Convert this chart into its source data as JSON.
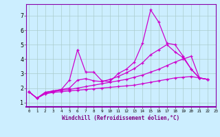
{
  "xlabel": "Windchill (Refroidissement éolien,°C)",
  "bg_color": "#cceeff",
  "grid_color": "#aacccc",
  "line_color": "#cc00cc",
  "x_ticks": [
    0,
    1,
    2,
    3,
    4,
    5,
    6,
    7,
    8,
    9,
    10,
    11,
    12,
    13,
    14,
    15,
    16,
    17,
    18,
    19,
    20,
    21,
    22,
    23
  ],
  "y_ticks": [
    1,
    2,
    3,
    4,
    5,
    6,
    7
  ],
  "ylim": [
    0.7,
    7.8
  ],
  "xlim": [
    -0.3,
    23
  ],
  "series": [
    {
      "x": [
        0,
        1,
        2,
        3,
        4,
        5,
        6,
        7,
        8,
        9,
        10,
        11,
        12,
        13,
        14,
        15,
        16,
        17,
        18,
        19,
        20,
        21,
        22
      ],
      "y": [
        1.75,
        1.3,
        1.7,
        1.8,
        1.9,
        2.55,
        4.65,
        3.1,
        3.1,
        2.5,
        2.45,
        3.0,
        3.3,
        3.8,
        5.1,
        7.4,
        6.55,
        5.1,
        5.0,
        4.2,
        3.3,
        2.7,
        2.6
      ]
    },
    {
      "x": [
        0,
        1,
        2,
        3,
        4,
        5,
        6,
        7,
        8,
        9,
        10,
        11,
        12,
        13,
        14,
        15,
        16,
        17,
        18,
        19,
        20,
        21,
        22
      ],
      "y": [
        1.75,
        1.3,
        1.7,
        1.8,
        1.9,
        2.0,
        2.55,
        2.65,
        2.5,
        2.45,
        2.6,
        2.8,
        3.05,
        3.35,
        3.75,
        4.3,
        4.65,
        5.0,
        4.5,
        4.1,
        3.3,
        2.7,
        2.6
      ]
    },
    {
      "x": [
        0,
        1,
        2,
        3,
        4,
        5,
        6,
        7,
        8,
        9,
        10,
        11,
        12,
        13,
        14,
        15,
        16,
        17,
        18,
        19,
        20,
        21,
        22
      ],
      "y": [
        1.75,
        1.3,
        1.6,
        1.75,
        1.85,
        1.9,
        2.0,
        2.1,
        2.2,
        2.3,
        2.4,
        2.5,
        2.6,
        2.75,
        2.9,
        3.1,
        3.3,
        3.55,
        3.8,
        4.0,
        4.2,
        2.7,
        2.6
      ]
    },
    {
      "x": [
        0,
        1,
        2,
        3,
        4,
        5,
        6,
        7,
        8,
        9,
        10,
        11,
        12,
        13,
        14,
        15,
        16,
        17,
        18,
        19,
        20,
        21,
        22
      ],
      "y": [
        1.75,
        1.3,
        1.6,
        1.7,
        1.75,
        1.8,
        1.85,
        1.9,
        1.95,
        2.0,
        2.05,
        2.1,
        2.15,
        2.2,
        2.3,
        2.4,
        2.5,
        2.6,
        2.7,
        2.75,
        2.8,
        2.7,
        2.6
      ]
    }
  ]
}
